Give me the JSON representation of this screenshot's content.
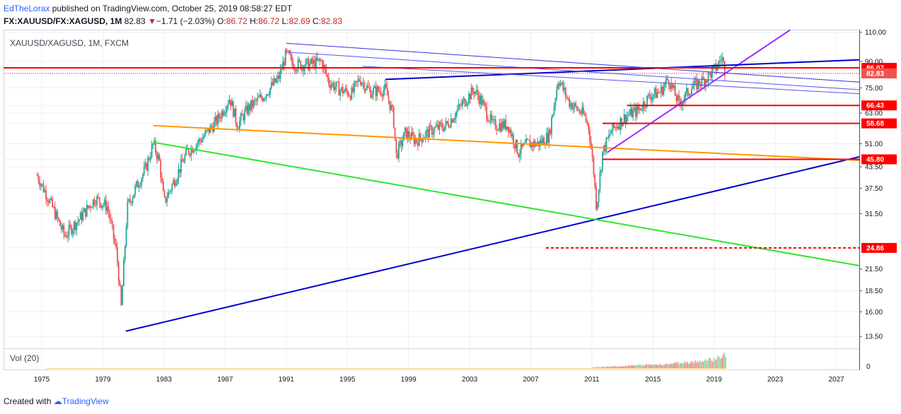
{
  "header": {
    "author": "EdTheLorax",
    "published_text": " published on TradingView.com, October 25, 2019 08:58:27 EDT",
    "symbol_line": "FX:XAUUSD/FX:XAGUSD, 1M",
    "last": "82.83",
    "change": "−1.71 (−2.03%)",
    "open_label": "O:",
    "open": "86.72",
    "high_label": "H:",
    "high": "86.72",
    "low_label": "L:",
    "low": "82.69",
    "close_label": "C:",
    "close": "82.83"
  },
  "pane": {
    "title": "XAUUSD/XAGUSD, 1M, FXCM",
    "volume_title": "Vol (20)",
    "volume_zero": "0"
  },
  "footer": {
    "created_with": "Created with",
    "brand": "TradingView"
  },
  "colors": {
    "up": "#26a69a",
    "down": "#ef5350",
    "red": "#ff0000",
    "blue": "#0000cc",
    "purple": "#9b30ff",
    "orange": "#ff9800",
    "green": "#2ee62e"
  },
  "chart_data": {
    "type": "candlestick",
    "y_scale": "log",
    "ylim": [
      12.5,
      112
    ],
    "xlim": [
      1972.5,
      2028.5
    ],
    "y_ticks": [
      13.5,
      16.0,
      18.5,
      21.5,
      24.86,
      31.5,
      37.5,
      43.5,
      45.8,
      51.0,
      58.68,
      63.0,
      66.43,
      75.0,
      82.83,
      86.07,
      90.0,
      110.0
    ],
    "y_tick_labels": [
      "13.50",
      "16.00",
      "18.50",
      "21.50",
      "24.86",
      "31.50",
      "37.50",
      "43.50",
      "45.80",
      "51.00",
      "58.68",
      "63.00",
      "66.43",
      "75.00",
      "82.83",
      "86.07",
      "90.00",
      "110.00"
    ],
    "x_ticks": [
      "1975",
      "1979",
      "1983",
      "1987",
      "1991",
      "1995",
      "1999",
      "2003",
      "2007",
      "2011",
      "2015",
      "2019",
      "2023",
      "2027"
    ],
    "highlighted_levels": [
      {
        "value": 86.07,
        "label": "86.07",
        "color": "#ff0000",
        "style": "solid"
      },
      {
        "value": 82.83,
        "label": "82.83",
        "color": "#ef5350",
        "style": "last-price"
      },
      {
        "value": 66.43,
        "label": "66.43",
        "color": "#ff0000",
        "style": "solid"
      },
      {
        "value": 58.68,
        "label": "58.68",
        "color": "#ff0000",
        "style": "solid"
      },
      {
        "value": 45.8,
        "label": "45.80",
        "color": "#ff0000",
        "style": "solid"
      },
      {
        "value": 24.86,
        "label": "24.86",
        "color": "#ff0000",
        "style": "dashed"
      }
    ],
    "trendlines": [
      {
        "name": "long-term support",
        "color": "#0000cc",
        "from": [
          1980.5,
          14.0
        ],
        "to": [
          2028.5,
          46.6
        ]
      },
      {
        "name": "descending green",
        "color": "#2ee62e",
        "from": [
          1982.3,
          51.5
        ],
        "to": [
          2028.5,
          22.0
        ]
      },
      {
        "name": "orange resistance",
        "color": "#ff9800",
        "from": [
          1982.3,
          57.8
        ],
        "to": [
          2028.5,
          45.5
        ]
      },
      {
        "name": "purple uptrend",
        "color": "#9b30ff",
        "from": [
          2012.0,
          48.0
        ],
        "to": [
          2024.0,
          112.0
        ]
      },
      {
        "name": "blue rising",
        "color": "#0000cc",
        "from": [
          1997.5,
          79.5
        ],
        "to": [
          2028.5,
          91.0
        ]
      },
      {
        "name": "channel upper",
        "color": "#3333dd",
        "from": [
          1991.0,
          102.0
        ],
        "to": [
          2028.5,
          78.0
        ]
      },
      {
        "name": "channel mid",
        "color": "#5555ee",
        "from": [
          1991.0,
          96.0
        ],
        "to": [
          2028.5,
          74.0
        ]
      },
      {
        "name": "channel lower",
        "color": "#5555ee",
        "from": [
          1996.0,
          87.0
        ],
        "to": [
          2028.5,
          72.0
        ]
      },
      {
        "name": "red horizontal 86",
        "color": "#ff0000",
        "from": [
          1972.5,
          86.07
        ],
        "to": [
          2028.5,
          86.07
        ]
      },
      {
        "name": "red 66.43",
        "color": "#ff0000",
        "from": [
          2013.3,
          66.43
        ],
        "to": [
          2028.5,
          66.43
        ]
      },
      {
        "name": "red 58.68",
        "color": "#ff0000",
        "from": [
          2011.7,
          58.68
        ],
        "to": [
          2028.5,
          58.68
        ]
      },
      {
        "name": "red 45.80",
        "color": "#ff0000",
        "from": [
          2011.7,
          45.8
        ],
        "to": [
          2028.5,
          45.8
        ]
      },
      {
        "name": "red dashed 24.86",
        "color": "#ff0000",
        "from": [
          2008.0,
          24.86
        ],
        "to": [
          2028.5,
          24.86
        ]
      }
    ],
    "price_path": [
      [
        1974.7,
        41.0
      ],
      [
        1975.5,
        34.5
      ],
      [
        1976.5,
        27.0
      ],
      [
        1977.5,
        30.5
      ],
      [
        1978.5,
        35.0
      ],
      [
        1979.3,
        33.0
      ],
      [
        1979.9,
        24.0
      ],
      [
        1980.2,
        16.5
      ],
      [
        1980.6,
        33.0
      ],
      [
        1981.2,
        38.0
      ],
      [
        1981.8,
        43.0
      ],
      [
        1982.3,
        51.0
      ],
      [
        1982.7,
        45.0
      ],
      [
        1983.0,
        34.0
      ],
      [
        1983.5,
        38.0
      ],
      [
        1984.5,
        48.0
      ],
      [
        1985.5,
        53.0
      ],
      [
        1986.5,
        60.0
      ],
      [
        1987.3,
        70.0
      ],
      [
        1987.8,
        58.0
      ],
      [
        1988.5,
        65.0
      ],
      [
        1989.5,
        71.0
      ],
      [
        1990.5,
        80.0
      ],
      [
        1991.0,
        95.0
      ],
      [
        1991.5,
        88.0
      ],
      [
        1992.5,
        88.0
      ],
      [
        1993.3,
        90.0
      ],
      [
        1993.8,
        78.0
      ],
      [
        1994.5,
        74.0
      ],
      [
        1995.3,
        72.0
      ],
      [
        1995.8,
        80.0
      ],
      [
        1996.5,
        73.0
      ],
      [
        1997.5,
        74.0
      ],
      [
        1998.0,
        62.0
      ],
      [
        1998.2,
        47.0
      ],
      [
        1998.8,
        55.0
      ],
      [
        1999.5,
        52.0
      ],
      [
        2000.5,
        56.0
      ],
      [
        2001.5,
        58.0
      ],
      [
        2002.5,
        67.0
      ],
      [
        2003.3,
        74.0
      ],
      [
        2003.8,
        68.0
      ],
      [
        2004.5,
        58.0
      ],
      [
        2005.5,
        58.0
      ],
      [
        2006.2,
        48.0
      ],
      [
        2006.8,
        51.0
      ],
      [
        2007.5,
        51.0
      ],
      [
        2008.2,
        54.0
      ],
      [
        2008.8,
        80.0
      ],
      [
        2009.5,
        68.0
      ],
      [
        2010.5,
        62.0
      ],
      [
        2010.8,
        57.0
      ],
      [
        2011.1,
        43.0
      ],
      [
        2011.3,
        33.0
      ],
      [
        2011.7,
        48.0
      ],
      [
        2012.3,
        56.0
      ],
      [
        2013.3,
        62.0
      ],
      [
        2014.0,
        64.0
      ],
      [
        2014.8,
        71.0
      ],
      [
        2015.5,
        73.0
      ],
      [
        2016.0,
        80.0
      ],
      [
        2016.7,
        67.0
      ],
      [
        2017.5,
        75.0
      ],
      [
        2018.5,
        80.0
      ],
      [
        2019.2,
        87.0
      ],
      [
        2019.5,
        93.0
      ],
      [
        2019.75,
        82.83
      ]
    ],
    "volume": [
      [
        2011.0,
        0.1
      ],
      [
        2012.0,
        0.15
      ],
      [
        2013.0,
        0.2
      ],
      [
        2014.0,
        0.25
      ],
      [
        2015.0,
        0.3
      ],
      [
        2016.0,
        0.35
      ],
      [
        2017.0,
        0.45
      ],
      [
        2018.0,
        0.55
      ],
      [
        2019.0,
        0.7
      ],
      [
        2019.75,
        1.0
      ]
    ]
  }
}
